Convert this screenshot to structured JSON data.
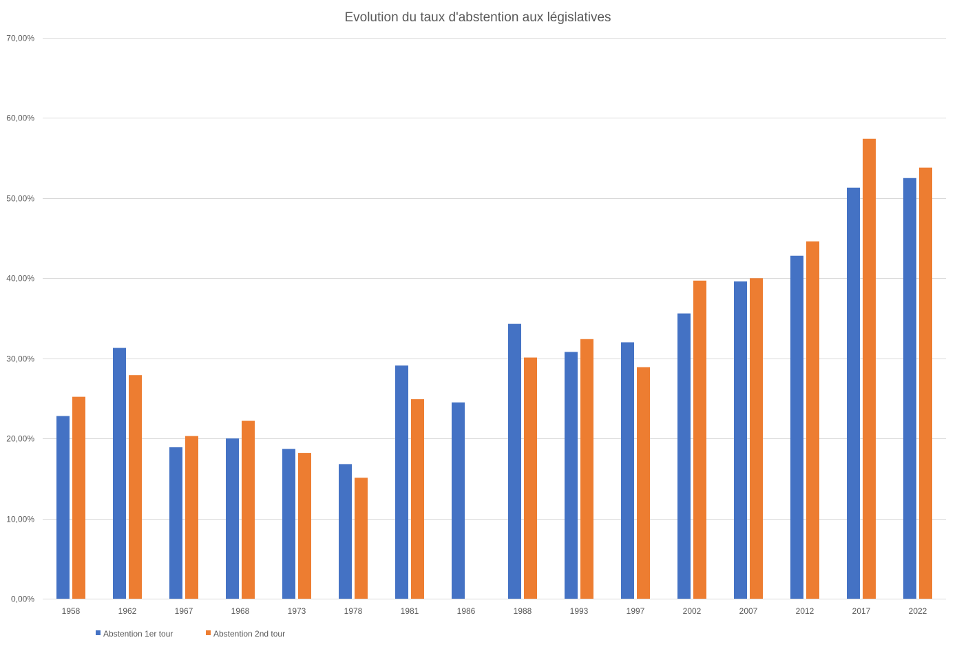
{
  "chart_data": {
    "type": "bar",
    "title": "Evolution du taux d'abstention aux législatives",
    "xlabel": "",
    "ylabel": "",
    "ylim": [
      0,
      70
    ],
    "y_ticks": [
      0,
      10,
      20,
      30,
      40,
      50,
      60,
      70
    ],
    "y_tick_labels": [
      "0,00%",
      "10,00%",
      "20,00%",
      "30,00%",
      "40,00%",
      "50,00%",
      "60,00%",
      "70,00%"
    ],
    "categories": [
      "1958",
      "1962",
      "1967",
      "1968",
      "1973",
      "1978",
      "1981",
      "1986",
      "1988",
      "1993",
      "1997",
      "2002",
      "2007",
      "2012",
      "2017",
      "2022"
    ],
    "series": [
      {
        "name": "Abstention 1er tour",
        "color": "#4472c4",
        "values": [
          22.8,
          31.3,
          18.9,
          20.0,
          18.7,
          16.8,
          29.1,
          24.5,
          34.3,
          30.8,
          32.0,
          35.6,
          39.6,
          42.8,
          51.3,
          52.5
        ]
      },
      {
        "name": "Abstention 2nd tour",
        "color": "#ed7d31",
        "values": [
          25.2,
          27.9,
          20.3,
          22.2,
          18.2,
          15.1,
          24.9,
          null,
          30.1,
          32.4,
          28.9,
          39.7,
          40.0,
          44.6,
          57.4,
          53.8
        ]
      }
    ],
    "grid": true,
    "legend_position": "bottom-left"
  }
}
